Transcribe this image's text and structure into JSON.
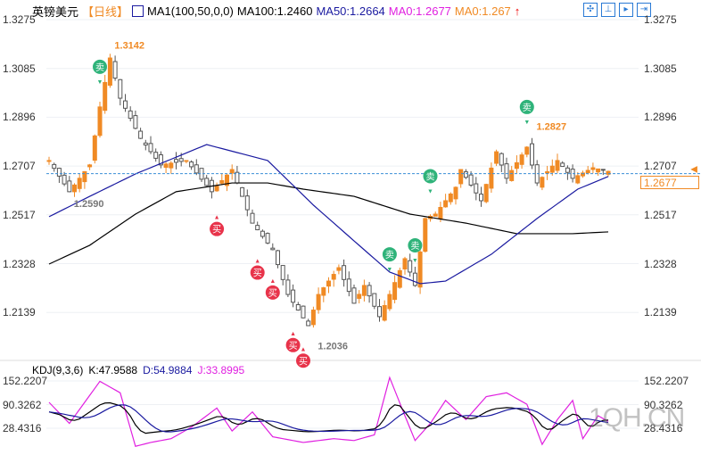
{
  "header": {
    "symbol": "英镑美元",
    "period": "【日线】",
    "ma_label": "MA1(100,50,0,0)",
    "ma100": "MA100:1.2460",
    "ma50": "MA50:1.2664",
    "ma0a": "MA0:1.2677",
    "ma0b": "MA0:1.267"
  },
  "toolbar": [
    "crosshair",
    "range",
    "cursor",
    "next"
  ],
  "price_axis": [
    "1.3275",
    "1.3085",
    "1.2896",
    "1.2707",
    "1.2517",
    "1.2328",
    "1.2139"
  ],
  "price_range": [
    1.2139,
    1.3275
  ],
  "current_price": "1.2677",
  "annotations": [
    {
      "t": "1.3142",
      "i": 12,
      "p": 1.3142,
      "c": "#f08a24"
    },
    {
      "t": "1.2590",
      "i": 4,
      "p": 1.259,
      "c": "#777"
    },
    {
      "t": "1.2036",
      "i": 52,
      "p": 1.2036,
      "c": "#777"
    },
    {
      "t": "1.2827",
      "i": 95,
      "p": 1.2827,
      "c": "#f08a24"
    }
  ],
  "signals": {
    "buy_label": "买",
    "sell_label": "卖",
    "buy": [
      33,
      41,
      44,
      48,
      50
    ],
    "sell": [
      10,
      67,
      72,
      75,
      94
    ]
  },
  "candles_anchor": [
    [
      0,
      1.2728
    ],
    [
      4,
      1.2607
    ],
    [
      8,
      1.2711
    ],
    [
      10,
      1.2936
    ],
    [
      12,
      1.3126
    ],
    [
      14,
      1.297
    ],
    [
      18,
      1.2814
    ],
    [
      22,
      1.2711
    ],
    [
      27,
      1.2728
    ],
    [
      32,
      1.2607
    ],
    [
      36,
      1.2693
    ],
    [
      40,
      1.2485
    ],
    [
      44,
      1.2382
    ],
    [
      47,
      1.2208
    ],
    [
      51,
      1.2087
    ],
    [
      53,
      1.2208
    ],
    [
      57,
      1.2312
    ],
    [
      60,
      1.2174
    ],
    [
      62,
      1.2243
    ],
    [
      65,
      1.2122
    ],
    [
      67,
      1.2208
    ],
    [
      70,
      1.2347
    ],
    [
      72,
      1.2243
    ],
    [
      74,
      1.2503
    ],
    [
      76,
      1.252
    ],
    [
      80,
      1.2624
    ],
    [
      81,
      1.2693
    ],
    [
      85,
      1.2572
    ],
    [
      88,
      1.2762
    ],
    [
      90,
      1.2659
    ],
    [
      94,
      1.278
    ],
    [
      96,
      1.2641
    ],
    [
      100,
      1.2728
    ],
    [
      103,
      1.2659
    ],
    [
      107,
      1.27
    ],
    [
      110,
      1.2686
    ]
  ],
  "ma50_anchor": [
    [
      0,
      1.251
    ],
    [
      8,
      1.2589
    ],
    [
      17,
      1.2676
    ],
    [
      31,
      1.279
    ],
    [
      43,
      1.2728
    ],
    [
      52,
      1.2555
    ],
    [
      60,
      1.2416
    ],
    [
      67,
      1.2295
    ],
    [
      73,
      1.225
    ],
    [
      78,
      1.226
    ],
    [
      87,
      1.2364
    ],
    [
      96,
      1.2503
    ],
    [
      104,
      1.2617
    ],
    [
      110,
      1.2666
    ]
  ],
  "ma100_anchor": [
    [
      0,
      1.2326
    ],
    [
      8,
      1.2399
    ],
    [
      17,
      1.252
    ],
    [
      25,
      1.2607
    ],
    [
      36,
      1.2641
    ],
    [
      43,
      1.2641
    ],
    [
      50,
      1.2617
    ],
    [
      60,
      1.2589
    ],
    [
      71,
      1.252
    ],
    [
      82,
      1.2485
    ],
    [
      92,
      1.2444
    ],
    [
      103,
      1.2444
    ],
    [
      110,
      1.2451
    ]
  ],
  "kdj": {
    "label": "KDJ(9,3,6)",
    "k": "K:47.9588",
    "d": "D:54.9884",
    "j": "J:33.8995",
    "axis": [
      "152.2207",
      "90.3262",
      "28.4316"
    ],
    "j_anchor": [
      [
        0,
        95
      ],
      [
        4,
        40
      ],
      [
        10,
        150
      ],
      [
        14,
        120
      ],
      [
        17,
        -20
      ],
      [
        20,
        -10
      ],
      [
        24,
        0
      ],
      [
        28,
        30
      ],
      [
        33,
        80
      ],
      [
        36,
        20
      ],
      [
        40,
        70
      ],
      [
        44,
        5
      ],
      [
        50,
        -10
      ],
      [
        56,
        0
      ],
      [
        60,
        -5
      ],
      [
        64,
        10
      ],
      [
        67,
        160
      ],
      [
        70,
        60
      ],
      [
        72,
        -5
      ],
      [
        75,
        40
      ],
      [
        78,
        100
      ],
      [
        82,
        50
      ],
      [
        86,
        110
      ],
      [
        90,
        120
      ],
      [
        94,
        90
      ],
      [
        97,
        -15
      ],
      [
        100,
        50
      ],
      [
        103,
        100
      ],
      [
        105,
        0
      ],
      [
        108,
        60
      ],
      [
        110,
        45
      ]
    ]
  },
  "watermark": "1QH.CN",
  "colors": {
    "up": "#f08a24",
    "down": "#555",
    "ma50": "#1a1aa0",
    "ma100": "#000",
    "j": "#e020e0",
    "buy": "#e8334a",
    "sell": "#2fb37a"
  }
}
